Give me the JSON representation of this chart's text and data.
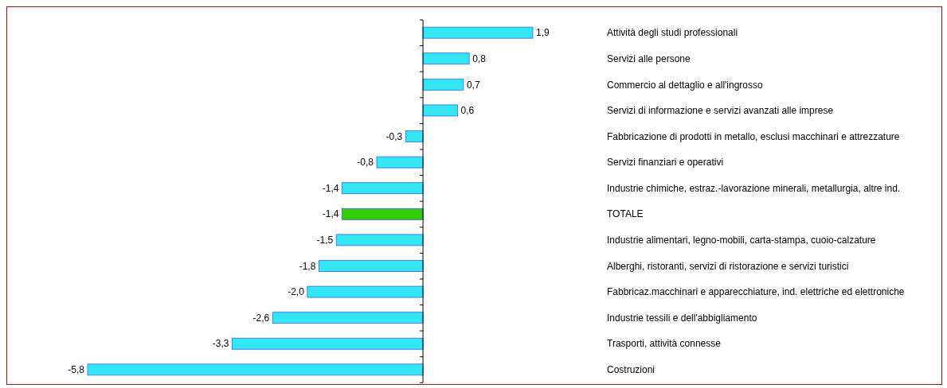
{
  "chart_data": {
    "type": "bar",
    "orientation": "horizontal",
    "categories": [
      "Attività degli studi professionali",
      "Servizi alle persone",
      "Commercio al dettaglio e all'ingrosso",
      "Servizi di informazione e servizi avanzati alle imprese",
      "Fabbricazione di prodotti in metallo, esclusi macchinari e attrezzature",
      "Servizi finanziari e operativi",
      "Industrie chimiche, estraz.-lavorazione minerali, metallurgia, altre ind.",
      "TOTALE",
      "Industrie alimentari, legno-mobili, carta-stampa, cuoio-calzature",
      "Alberghi, ristoranti, servizi di ristorazione e servizi turistici",
      "Fabbricaz.macchinari e apparecchiature, ind. elettriche ed elettroniche",
      "Industrie tessili e dell'abbigliamento",
      "Trasporti, attività connesse",
      "Costruzioni"
    ],
    "values": [
      1.9,
      0.8,
      0.7,
      0.6,
      -0.3,
      -0.8,
      -1.4,
      -1.4,
      -1.5,
      -1.8,
      -2.0,
      -2.6,
      -3.3,
      -5.8
    ],
    "value_labels": [
      "1,9",
      "0,8",
      "0,7",
      "0,6",
      "-0,3",
      "-0,8",
      "-1,4",
      "-1,4",
      "-1,5",
      "-1,8",
      "-2,0",
      "-2,6",
      "-3,3",
      "-5,8"
    ],
    "colors": [
      "#33e6f2",
      "#33e6f2",
      "#33e6f2",
      "#33e6f2",
      "#33e6f2",
      "#33e6f2",
      "#33e6f2",
      "#33cc00",
      "#33e6f2",
      "#33e6f2",
      "#33e6f2",
      "#33e6f2",
      "#33e6f2",
      "#33e6f2"
    ],
    "stacked": false
  }
}
